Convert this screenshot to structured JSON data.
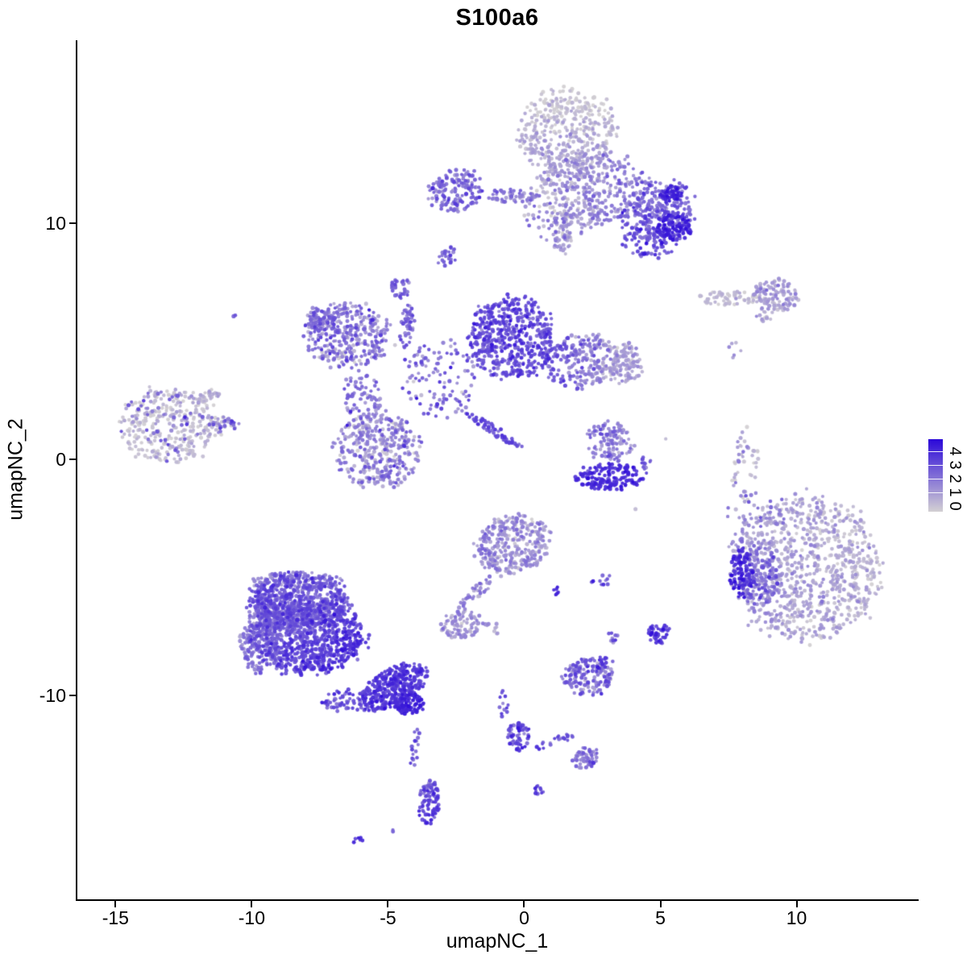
{
  "title": "S100a6",
  "chart_data": {
    "type": "scatter",
    "title": "S100a6",
    "xlabel": "umapNC_1",
    "ylabel": "umapNC_2",
    "x_ticks": [
      -15,
      -10,
      -5,
      0,
      5,
      10
    ],
    "y_ticks": [
      -10,
      0,
      10
    ],
    "xlim": [
      -16.43,
      14.45
    ],
    "ylim": [
      -18.67,
      17.75
    ],
    "grid": false,
    "legend": {
      "position": "right",
      "ticks": [
        0,
        1,
        2,
        3,
        4
      ],
      "vmax": 4.4,
      "low_color": "#d3d0d3",
      "high_color": "#2b08d9"
    },
    "point_radius_px": 2.3,
    "seed": 42,
    "clusters": [
      {
        "name": "top-blob-main",
        "x": 1.61,
        "y": 13.82,
        "rx": 1.78,
        "ry": 1.88,
        "rot": 0,
        "n": 420,
        "expr": 0.6,
        "sd": 0.4,
        "gx": 0,
        "gy": 0.6
      },
      {
        "name": "top-blob-lower",
        "x": 2.5,
        "y": 11.43,
        "rx": 2.07,
        "ry": 1.54,
        "rot": 0,
        "n": 330,
        "expr": 1.3,
        "sd": 0.5,
        "gx": 0.6,
        "gy": 0
      },
      {
        "name": "top-blob-tail",
        "x": 1.38,
        "y": 9.56,
        "rx": 0.36,
        "ry": 0.96,
        "rot": 0,
        "n": 60,
        "expr": 1.2,
        "sd": 0.5,
        "gx": 0,
        "gy": 0
      },
      {
        "name": "top-right-arm",
        "x": 4.87,
        "y": 10.51,
        "rx": 1.42,
        "ry": 1.3,
        "rot": -20,
        "n": 260,
        "expr": 2.4,
        "sd": 0.6,
        "gx": 0,
        "gy": 0
      },
      {
        "name": "top-right-hotspot-a",
        "x": 5.4,
        "y": 11.26,
        "rx": 0.41,
        "ry": 0.34,
        "rot": 0,
        "n": 45,
        "expr": 3.7,
        "sd": 0.3,
        "gx": 0,
        "gy": 0
      },
      {
        "name": "top-right-hotspot-b",
        "x": 5.55,
        "y": 9.83,
        "rx": 0.65,
        "ry": 0.55,
        "rot": 0,
        "n": 90,
        "expr": 3.8,
        "sd": 0.3,
        "gx": 0,
        "gy": 0
      },
      {
        "name": "top-left-arm",
        "x": -2.5,
        "y": 11.33,
        "rx": 1.01,
        "ry": 0.89,
        "rot": -15,
        "n": 150,
        "expr": 2.2,
        "sd": 0.6,
        "gx": 0,
        "gy": 0
      },
      {
        "name": "top-left-chain",
        "x": -0.43,
        "y": 11.16,
        "rx": 1.07,
        "ry": 0.27,
        "rot": 0,
        "n": 60,
        "expr": 1.8,
        "sd": 0.6,
        "gx": 0,
        "gy": 0
      },
      {
        "name": "top-bridge",
        "x": 1.46,
        "y": 10.41,
        "rx": 1.63,
        "ry": 1.19,
        "rot": 0,
        "n": 80,
        "expr": 1.5,
        "sd": 0.7,
        "gx": 0,
        "gy": 0
      },
      {
        "name": "top-right-lower",
        "x": 4.57,
        "y": 9.22,
        "rx": 1.18,
        "ry": 0.68,
        "rot": 0,
        "n": 70,
        "expr": 2.9,
        "sd": 0.6,
        "gx": 0,
        "gy": 0
      },
      {
        "name": "small-blob-under-top",
        "x": -2.88,
        "y": 8.63,
        "rx": 0.33,
        "ry": 0.48,
        "rot": 30,
        "n": 26,
        "expr": 2.4,
        "sd": 0.5,
        "gx": 0,
        "gy": 0
      },
      {
        "name": "mid-left-wing",
        "x": -6.46,
        "y": 5.22,
        "rx": 1.54,
        "ry": 1.37,
        "rot": 0,
        "n": 330,
        "expr": 1.8,
        "sd": 0.8,
        "gx": 0,
        "gy": 0
      },
      {
        "name": "mid-left-wing-tip",
        "x": -7.47,
        "y": 5.87,
        "rx": 0.53,
        "ry": 0.55,
        "rot": 0,
        "n": 60,
        "expr": 2.2,
        "sd": 0.6,
        "gx": 0,
        "gy": 0
      },
      {
        "name": "mid-top-knob",
        "x": -4.54,
        "y": 7.27,
        "rx": 0.38,
        "ry": 0.44,
        "rot": 0,
        "n": 35,
        "expr": 2.4,
        "sd": 0.4,
        "gx": 0,
        "gy": 0
      },
      {
        "name": "mid-top-chain",
        "x": -4.3,
        "y": 5.63,
        "rx": 0.24,
        "ry": 1.02,
        "rot": 10,
        "n": 45,
        "expr": 2.3,
        "sd": 0.5,
        "gx": 0,
        "gy": 0
      },
      {
        "name": "mid-center-sparse",
        "x": -3.12,
        "y": 3.41,
        "rx": 1.33,
        "ry": 1.71,
        "rot": 0,
        "n": 110,
        "expr": 2.2,
        "sd": 0.8,
        "gx": 0,
        "gy": 0
      },
      {
        "name": "mid-main-mass",
        "x": -0.49,
        "y": 5.12,
        "rx": 1.54,
        "ry": 1.71,
        "rot": 0,
        "n": 520,
        "expr": 2.9,
        "sd": 0.5,
        "gx": 0,
        "gy": 0
      },
      {
        "name": "mid-right-arm",
        "x": 2.12,
        "y": 4.16,
        "rx": 1.42,
        "ry": 1.09,
        "rot": -10,
        "n": 260,
        "expr": 1.8,
        "sd": 0.6,
        "gx": -1.0,
        "gy": 0
      },
      {
        "name": "mid-right-edge",
        "x": 3.68,
        "y": 4.1,
        "rx": 0.65,
        "ry": 0.89,
        "rot": 0,
        "n": 90,
        "expr": 1.1,
        "sd": 0.4,
        "gx": 0,
        "gy": 0
      },
      {
        "name": "mid-lower-round",
        "x": -5.34,
        "y": 0.41,
        "rx": 1.6,
        "ry": 1.57,
        "rot": 0,
        "n": 380,
        "expr": 1.5,
        "sd": 0.8,
        "gx": 0,
        "gy": 0
      },
      {
        "name": "mid-diag-streak",
        "x": -1.2,
        "y": 1.3,
        "rx": 1.33,
        "ry": 0.2,
        "rot": 33,
        "n": 60,
        "expr": 2.7,
        "sd": 0.4,
        "gx": 0,
        "gy": 0
      },
      {
        "name": "mid-wing-bridge",
        "x": -5.93,
        "y": 2.73,
        "rx": 0.74,
        "ry": 1.02,
        "rot": 0,
        "n": 70,
        "expr": 2.0,
        "sd": 0.6,
        "gx": 0,
        "gy": 0
      },
      {
        "name": "left-island-grey",
        "x": -13.03,
        "y": 1.43,
        "rx": 1.83,
        "ry": 1.57,
        "rot": 0,
        "n": 300,
        "expr": 0.35,
        "sd": 0.35,
        "gx": 0,
        "gy": 0
      },
      {
        "name": "left-island-purple-sprinkle",
        "x": -13.03,
        "y": 1.43,
        "rx": 1.78,
        "ry": 1.5,
        "rot": 0,
        "n": 60,
        "expr": 2.2,
        "sd": 0.6,
        "gx": 0,
        "gy": 0
      },
      {
        "name": "left-island-point",
        "x": -11.02,
        "y": 1.47,
        "rx": 0.59,
        "ry": 0.34,
        "rot": 0,
        "n": 30,
        "expr": 1.5,
        "sd": 0.8,
        "gx": 0,
        "gy": 0
      },
      {
        "name": "left-island-tip-dot",
        "x": -10.72,
        "y": 1.54,
        "rx": 0.09,
        "ry": 0.1,
        "rot": 0,
        "n": 4,
        "expr": 3.0,
        "sd": 0.2,
        "gx": 0,
        "gy": 0
      },
      {
        "name": "left-island-top-arm",
        "x": -11.67,
        "y": 2.63,
        "rx": 0.59,
        "ry": 0.24,
        "rot": -25,
        "n": 30,
        "expr": 0.5,
        "sd": 0.4,
        "gx": 0,
        "gy": 0
      },
      {
        "name": "lone-dot-left",
        "x": -10.61,
        "y": 6.08,
        "rx": 0.06,
        "ry": 0.07,
        "rot": 0,
        "n": 2,
        "expr": 2.5,
        "sd": 0.2,
        "gx": 0,
        "gy": 0
      },
      {
        "name": "center-right-upper",
        "x": 3.12,
        "y": 0.72,
        "rx": 0.89,
        "ry": 0.89,
        "rot": 0,
        "n": 110,
        "expr": 1.8,
        "sd": 0.6,
        "gx": 0,
        "gy": 0
      },
      {
        "name": "center-right-crescent",
        "x": 3.15,
        "y": -0.72,
        "rx": 1.3,
        "ry": 0.55,
        "rot": 0,
        "n": 160,
        "expr": 3.6,
        "sd": 0.35,
        "gx": 0,
        "gy": 0
      },
      {
        "name": "center-right-dots",
        "x": 4.42,
        "y": -0.17,
        "rx": 0.24,
        "ry": 0.27,
        "rot": 0,
        "n": 12,
        "expr": 2.5,
        "sd": 0.5,
        "gx": 0,
        "gy": 0
      },
      {
        "name": "right-top-chain",
        "x": 7.53,
        "y": 6.83,
        "rx": 1.18,
        "ry": 0.31,
        "rot": 0,
        "n": 60,
        "expr": 0.4,
        "sd": 0.3,
        "gx": 0,
        "gy": 0
      },
      {
        "name": "right-top-blob",
        "x": 9.25,
        "y": 6.93,
        "rx": 0.83,
        "ry": 0.68,
        "rot": 0,
        "n": 110,
        "expr": 1.1,
        "sd": 0.5,
        "gx": 0,
        "gy": 0
      },
      {
        "name": "right-top-pair",
        "x": 8.8,
        "y": 6.01,
        "rx": 0.41,
        "ry": 0.27,
        "rot": -30,
        "n": 12,
        "expr": 0.8,
        "sd": 0.4,
        "gx": 0,
        "gy": 0
      },
      {
        "name": "right-tiny-dots",
        "x": 7.74,
        "y": 4.68,
        "rx": 0.24,
        "ry": 0.41,
        "rot": 0,
        "n": 6,
        "expr": 1.0,
        "sd": 0.5,
        "gx": 0,
        "gy": 0
      },
      {
        "name": "right-crescent-long",
        "x": 7.97,
        "y": 0.17,
        "rx": 0.3,
        "ry": 1.3,
        "rot": 12,
        "n": 26,
        "expr": 0.9,
        "sd": 0.7,
        "gx": 0,
        "gy": 0
      },
      {
        "name": "right-crescent-short",
        "x": 8.45,
        "y": -0.24,
        "rx": 0.18,
        "ry": 0.75,
        "rot": 5,
        "n": 12,
        "expr": 0.4,
        "sd": 0.3,
        "gx": 0,
        "gy": 0
      },
      {
        "name": "bottom-right-ball",
        "x": 10.34,
        "y": -4.64,
        "rx": 2.72,
        "ry": 3.07,
        "rot": 0,
        "n": 900,
        "expr": 0.9,
        "sd": 0.45,
        "gx": -0.3,
        "gy": 0
      },
      {
        "name": "bottom-right-blue-edge",
        "x": 8.0,
        "y": -4.85,
        "rx": 0.47,
        "ry": 1.02,
        "rot": 0,
        "n": 90,
        "expr": 3.6,
        "sd": 0.4,
        "gx": 0,
        "gy": 0
      },
      {
        "name": "bottom-right-mid-zone",
        "x": 8.65,
        "y": -4.95,
        "rx": 0.65,
        "ry": 1.37,
        "rot": 0,
        "n": 130,
        "expr": 2.3,
        "sd": 0.6,
        "gx": 0,
        "gy": 0
      },
      {
        "name": "bottom-right-top-sparse",
        "x": 8.12,
        "y": -2.39,
        "rx": 0.74,
        "ry": 1.02,
        "rot": 0,
        "n": 40,
        "expr": 1.4,
        "sd": 0.9,
        "gx": 0,
        "gy": 0
      },
      {
        "name": "bottom-right-top-dots",
        "x": 9.3,
        "y": -2.25,
        "rx": 0.53,
        "ry": 0.75,
        "rot": 0,
        "n": 18,
        "expr": 1.2,
        "sd": 0.8,
        "gx": 0,
        "gy": 0
      },
      {
        "name": "center-low-blob",
        "x": -0.37,
        "y": -3.58,
        "rx": 1.36,
        "ry": 1.23,
        "rot": -15,
        "n": 330,
        "expr": 1.4,
        "sd": 0.6,
        "gx": 0,
        "gy": 0
      },
      {
        "name": "center-low-tail",
        "x": -1.85,
        "y": -5.8,
        "rx": 0.89,
        "ry": 0.27,
        "rot": -47,
        "n": 40,
        "expr": 1.5,
        "sd": 0.5,
        "gx": 0,
        "gy": 0
      },
      {
        "name": "center-low-foot",
        "x": -2.29,
        "y": -7.0,
        "rx": 0.77,
        "ry": 0.58,
        "rot": -10,
        "n": 90,
        "expr": 1.2,
        "sd": 0.5,
        "gx": 0,
        "gy": 0
      },
      {
        "name": "center-low-blue-tip",
        "x": 1.17,
        "y": -5.56,
        "rx": 0.15,
        "ry": 0.17,
        "rot": 0,
        "n": 6,
        "expr": 3.6,
        "sd": 0.2,
        "gx": 0,
        "gy": 0
      },
      {
        "name": "center-low-specks",
        "x": -1.14,
        "y": -7.17,
        "rx": 0.36,
        "ry": 0.27,
        "rot": 0,
        "n": 8,
        "expr": 1.0,
        "sd": 0.6,
        "gx": 0,
        "gy": 0
      },
      {
        "name": "mid-low-dots",
        "x": 2.83,
        "y": -5.09,
        "rx": 0.41,
        "ry": 0.24,
        "rot": 0,
        "n": 10,
        "expr": 2.8,
        "sd": 0.6,
        "gx": 0,
        "gy": 0
      },
      {
        "name": "small-blue-island",
        "x": 4.93,
        "y": -7.37,
        "rx": 0.38,
        "ry": 0.44,
        "rot": 0,
        "n": 45,
        "expr": 3.3,
        "sd": 0.5,
        "gx": 0,
        "gy": 0
      },
      {
        "name": "small-blue-island-neighbor",
        "x": 3.27,
        "y": -7.54,
        "rx": 0.21,
        "ry": 0.24,
        "rot": 0,
        "n": 10,
        "expr": 2.3,
        "sd": 0.7,
        "gx": 0,
        "gy": 0
      },
      {
        "name": "lower-mid-cluster",
        "x": 2.32,
        "y": -9.22,
        "rx": 0.89,
        "ry": 0.78,
        "rot": 0,
        "n": 160,
        "expr": 2.2,
        "sd": 0.8,
        "gx": 0,
        "gy": 0
      },
      {
        "name": "lower-mid-blue-dots",
        "x": 2.94,
        "y": -8.53,
        "rx": 0.3,
        "ry": 0.24,
        "rot": 0,
        "n": 12,
        "expr": 3.4,
        "sd": 0.4,
        "gx": 0,
        "gy": 0
      },
      {
        "name": "big-left-top-bulge",
        "x": -8.3,
        "y": -5.97,
        "rx": 1.78,
        "ry": 1.09,
        "rot": 0,
        "n": 550,
        "expr": 2.6,
        "sd": 0.5,
        "gx": 0,
        "gy": 0
      },
      {
        "name": "big-left-core",
        "x": -8.0,
        "y": -7.51,
        "rx": 2.13,
        "ry": 1.54,
        "rot": 0,
        "n": 900,
        "expr": 2.8,
        "sd": 0.5,
        "gx": 0.4,
        "gy": 0.3
      },
      {
        "name": "big-left-west-edge",
        "x": -9.72,
        "y": -7.68,
        "rx": 0.74,
        "ry": 1.37,
        "rot": 0,
        "n": 150,
        "expr": 1.9,
        "sd": 0.5,
        "gx": 0,
        "gy": 0
      },
      {
        "name": "big-left-north-edge",
        "x": -8.3,
        "y": -5.19,
        "rx": 1.63,
        "ry": 0.41,
        "rot": 0,
        "n": 120,
        "expr": 1.8,
        "sd": 0.5,
        "gx": 0,
        "gy": 0
      },
      {
        "name": "big-left-funnel",
        "x": -4.84,
        "y": -9.66,
        "rx": 1.33,
        "ry": 0.75,
        "rot": -28,
        "n": 350,
        "expr": 3.2,
        "sd": 0.4,
        "gx": 0,
        "gy": 0
      },
      {
        "name": "big-left-blue-tip",
        "x": -4.22,
        "y": -10.34,
        "rx": 0.53,
        "ry": 0.48,
        "rot": 0,
        "n": 90,
        "expr": 3.7,
        "sd": 0.3,
        "gx": 0,
        "gy": 0
      },
      {
        "name": "big-left-under-scatter",
        "x": -6.52,
        "y": -10.24,
        "rx": 0.89,
        "ry": 0.51,
        "rot": 0,
        "n": 60,
        "expr": 2.7,
        "sd": 0.5,
        "gx": 0,
        "gy": 0
      },
      {
        "name": "drip-chain",
        "x": -4.01,
        "y": -12.46,
        "rx": 0.18,
        "ry": 1.19,
        "rot": 0,
        "n": 16,
        "expr": 2.8,
        "sd": 0.5,
        "gx": 0,
        "gy": 0
      },
      {
        "name": "drip-blob",
        "x": -3.48,
        "y": -14.51,
        "rx": 0.36,
        "ry": 0.96,
        "rot": 5,
        "n": 90,
        "expr": 3.0,
        "sd": 0.6,
        "gx": 0,
        "gy": 0.6
      },
      {
        "name": "drip-dot",
        "x": -4.84,
        "y": -15.7,
        "rx": 0.07,
        "ry": 0.07,
        "rot": 0,
        "n": 2,
        "expr": 2.2,
        "sd": 0.2,
        "gx": 0,
        "gy": 0
      },
      {
        "name": "drip-pair",
        "x": -6.08,
        "y": -16.14,
        "rx": 0.24,
        "ry": 0.17,
        "rot": 0,
        "n": 6,
        "expr": 3.6,
        "sd": 0.3,
        "gx": 0,
        "gy": 0
      },
      {
        "name": "fork-streak-top",
        "x": -0.75,
        "y": -10.41,
        "rx": 0.18,
        "ry": 0.61,
        "rot": 0,
        "n": 12,
        "expr": 2.6,
        "sd": 0.5,
        "gx": 0,
        "gy": 0
      },
      {
        "name": "fork-node",
        "x": -0.22,
        "y": -11.71,
        "rx": 0.41,
        "ry": 0.58,
        "rot": 0,
        "n": 60,
        "expr": 2.9,
        "sd": 0.6,
        "gx": 0,
        "gy": 0
      },
      {
        "name": "fork-diag-chain",
        "x": 1.05,
        "y": -11.98,
        "rx": 0.83,
        "ry": 0.2,
        "rot": -18,
        "n": 20,
        "expr": 2.7,
        "sd": 0.5,
        "gx": 0,
        "gy": 0
      },
      {
        "name": "fork-end-blob",
        "x": 2.29,
        "y": -12.66,
        "rx": 0.5,
        "ry": 0.44,
        "rot": -15,
        "n": 60,
        "expr": 1.9,
        "sd": 0.5,
        "gx": 0,
        "gy": 0
      },
      {
        "name": "fork-under-dot",
        "x": 0.52,
        "y": -14.03,
        "rx": 0.24,
        "ry": 0.24,
        "rot": 0,
        "n": 10,
        "expr": 3.1,
        "sd": 0.4,
        "gx": 0,
        "gy": 0
      },
      {
        "name": "lone-grey-dot-a",
        "x": 5.16,
        "y": 0.85,
        "rx": 0.05,
        "ry": 0.05,
        "rot": 0,
        "n": 1,
        "expr": 0.4,
        "sd": 0.1,
        "gx": 0,
        "gy": 0
      },
      {
        "name": "lone-grey-dot-b",
        "x": 4.07,
        "y": -2.15,
        "rx": 0.05,
        "ry": 0.05,
        "rot": 0,
        "n": 1,
        "expr": 0.4,
        "sd": 0.1,
        "gx": 0,
        "gy": 0
      }
    ]
  }
}
